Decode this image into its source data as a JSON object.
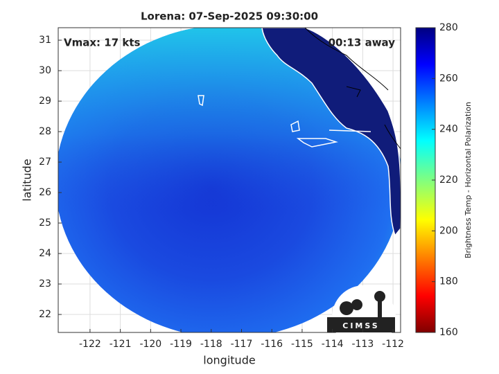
{
  "chart_data": {
    "type": "map",
    "title": "Lorena: 07-Sep-2025 09:30:00",
    "annotations": [
      "Vmax: 17 kts",
      "00:13 away"
    ],
    "x_label": "longitude",
    "y_label": "latitude",
    "xlim": [
      -123.05,
      -111.75
    ],
    "xticks": [
      -122,
      -121,
      -120,
      -119,
      -118,
      -117,
      -116,
      -115,
      -114,
      -113,
      -112
    ],
    "ylim": [
      21.41,
      31.41
    ],
    "yticks": [
      22,
      23,
      24,
      25,
      26,
      27,
      28,
      29,
      30,
      31
    ],
    "grid": true,
    "colorbar": {
      "label": "Brightness Temp - Horizontal Polarization",
      "lim": [
        160,
        280
      ],
      "ticks": [
        160,
        180,
        200,
        220,
        240,
        260,
        280
      ],
      "colormap": "jet"
    },
    "logo": "CIMSS"
  }
}
